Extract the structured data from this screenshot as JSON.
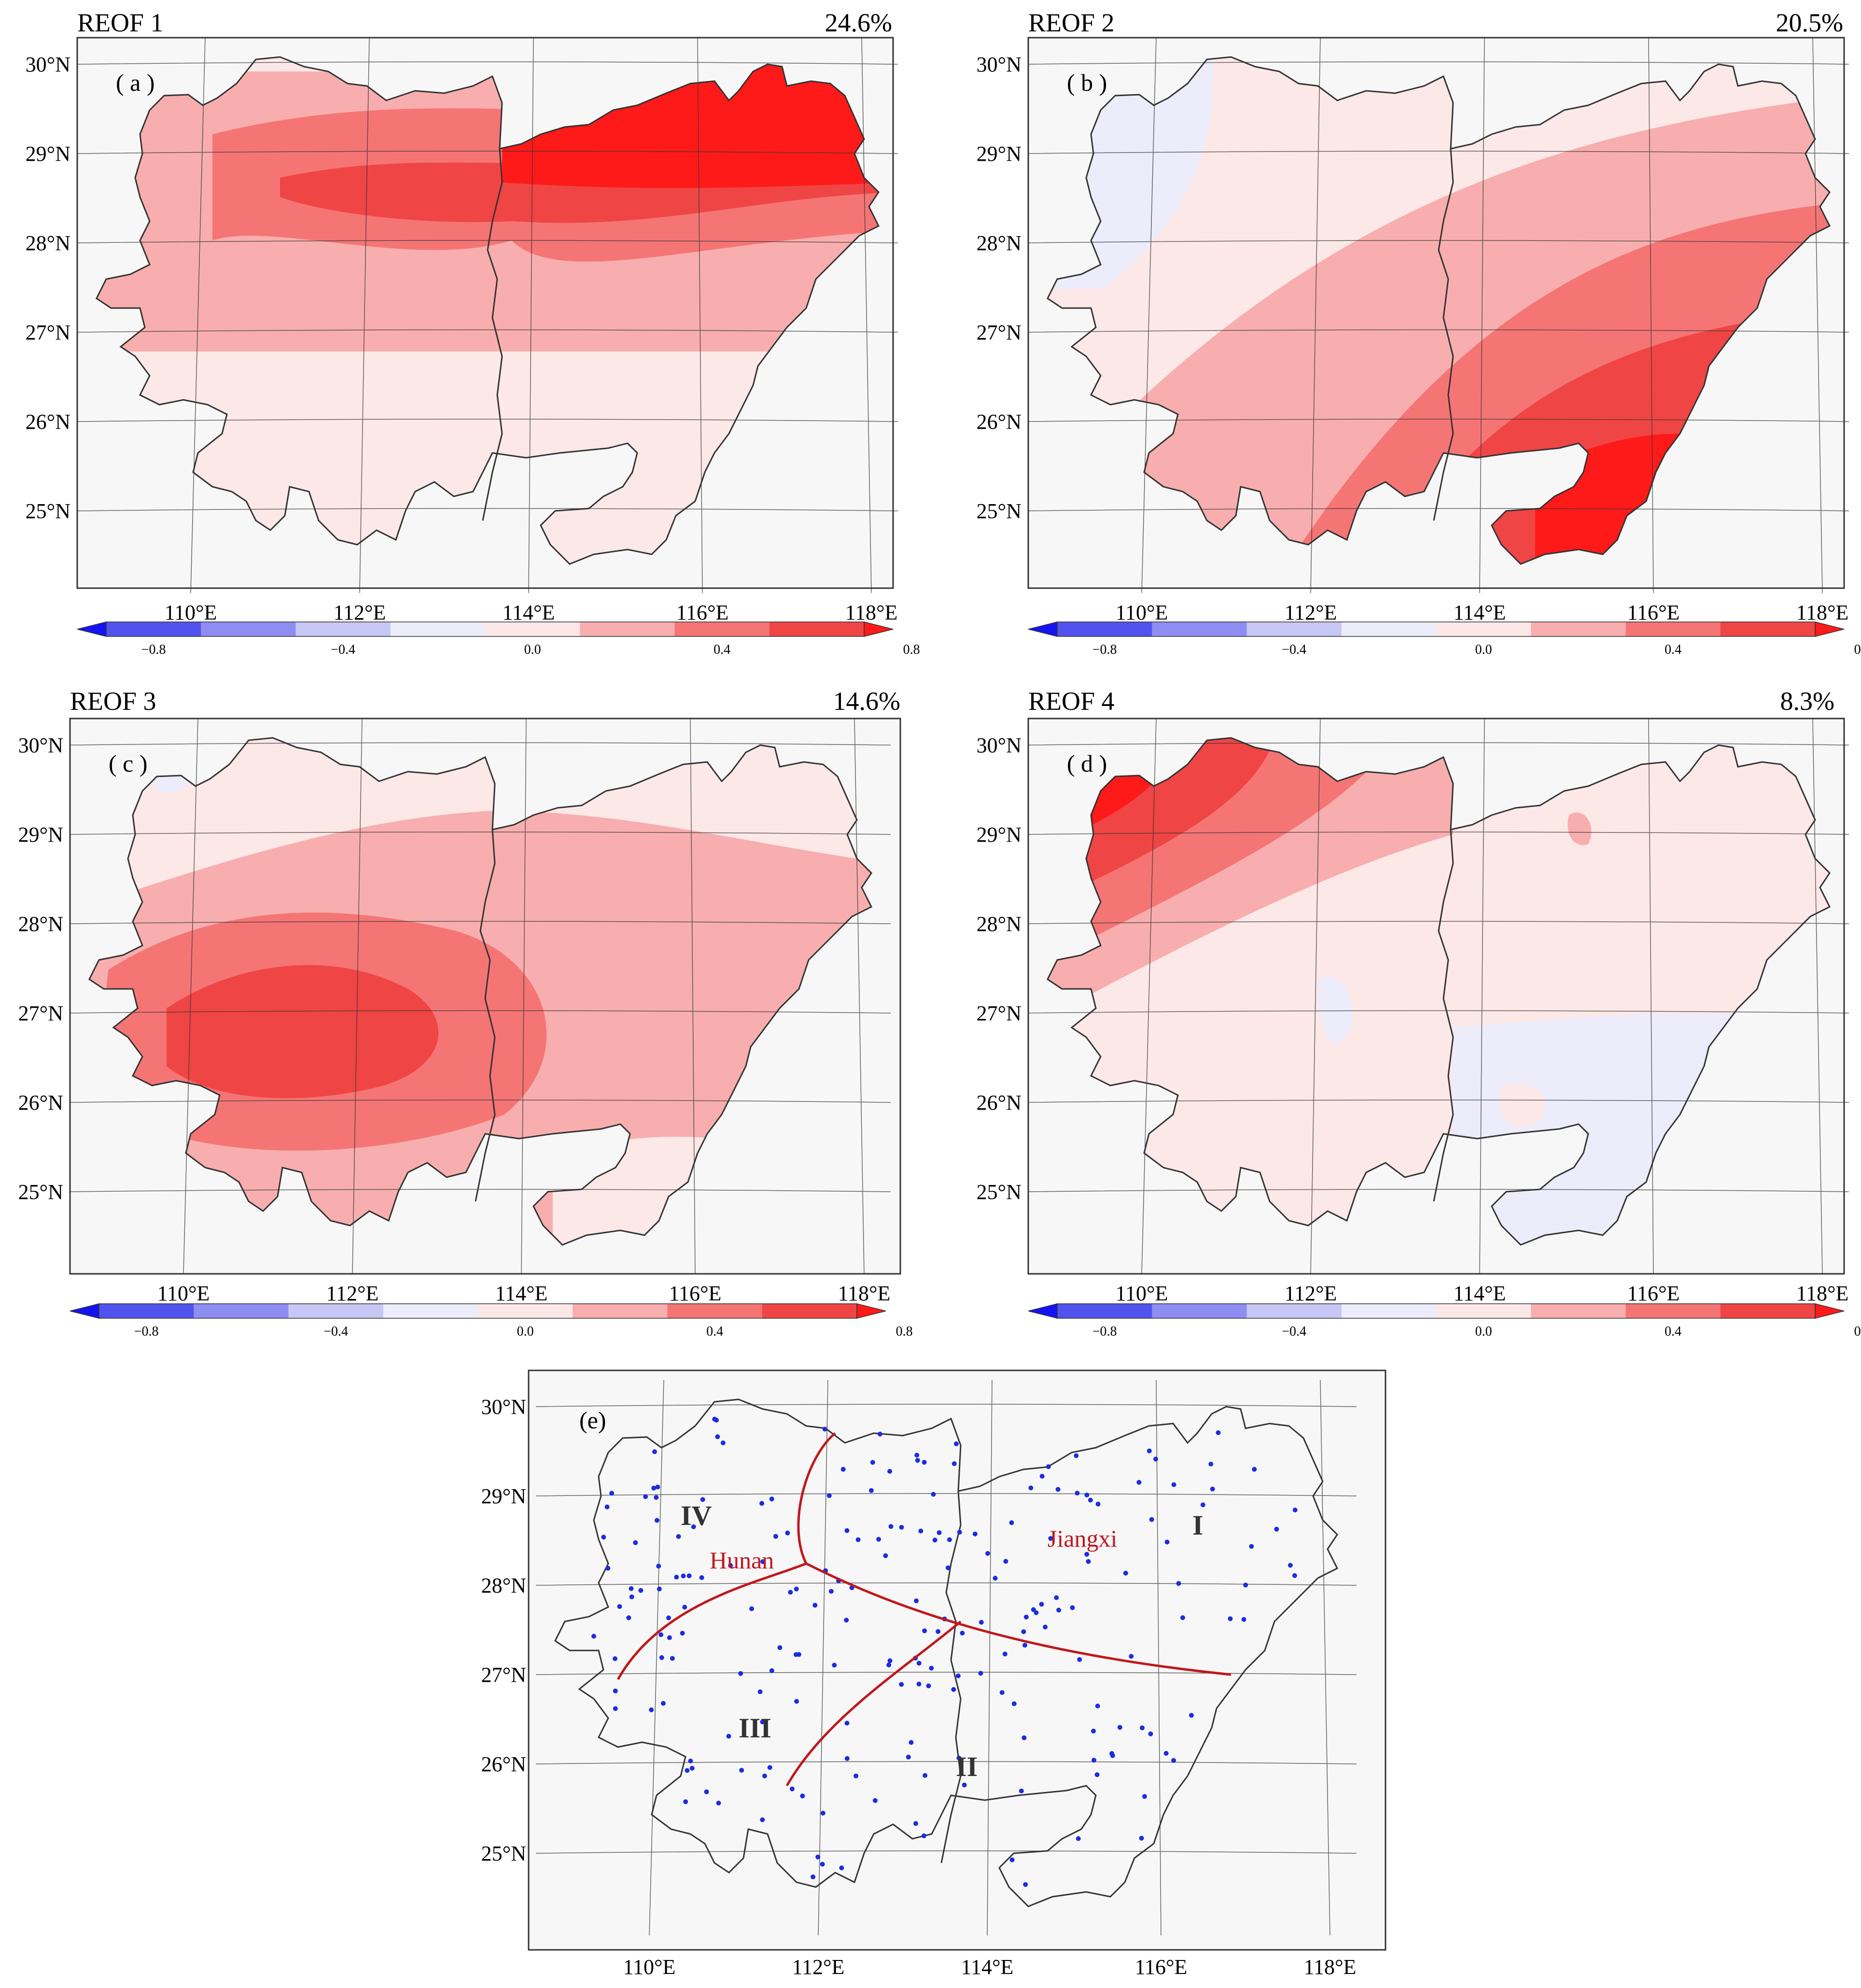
{
  "figure": {
    "panels": [
      {
        "id": "a",
        "title": "REOF 1",
        "variance": "24.6%",
        "label": "( a )"
      },
      {
        "id": "b",
        "title": "REOF 2",
        "variance": "20.5%",
        "label": "( b )"
      },
      {
        "id": "c",
        "title": "REOF 3",
        "variance": "14.6%",
        "label": "( c )"
      },
      {
        "id": "d",
        "title": "REOF 4",
        "variance": "8.3%",
        "label": "( d )"
      },
      {
        "id": "e",
        "title": "",
        "variance": "",
        "label": "(e)"
      }
    ],
    "lat_labels": [
      "30°N",
      "29°N",
      "28°N",
      "27°N",
      "26°N",
      "25°N"
    ],
    "lon_labels": [
      "110°E",
      "112°E",
      "114°E",
      "116°E",
      "118°E"
    ],
    "colorbar": {
      "ticks": [
        "−0.8",
        "−0.4",
        "0.0",
        "0.4",
        "0.8"
      ],
      "colors": [
        "#1414f0",
        "#5252ee",
        "#8e8ef2",
        "#c7c7f6",
        "#ececfb",
        "#fde8e8",
        "#f8aeae",
        "#f57575",
        "#f04545",
        "#ff1a1a"
      ]
    },
    "region_map": {
      "provinces": [
        "Hunan",
        "Jiangxi"
      ],
      "regions": [
        "I",
        "II",
        "III",
        "IV"
      ]
    },
    "colors": {
      "boundary": "#333333",
      "divider": "#c0181e",
      "station": "#1c2de0",
      "map_bg": "#f7f7f7"
    }
  }
}
